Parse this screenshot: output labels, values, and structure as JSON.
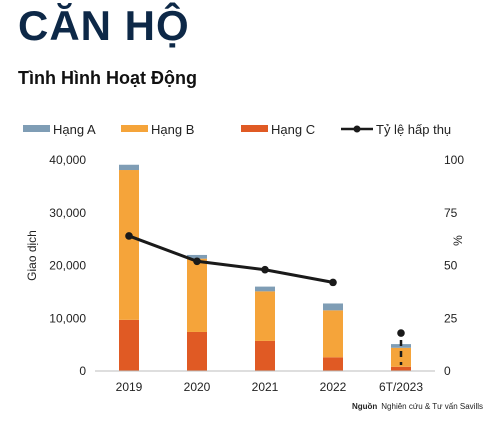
{
  "page": {
    "title": "CĂN HỘ",
    "subtitle": "Tình Hình Hoạt Động",
    "source_label": "Nguồn",
    "source_text": "Nghiên cứu & Tư vấn Savills"
  },
  "chart_data": {
    "type": "bar",
    "stacked": true,
    "categories": [
      "2019",
      "2020",
      "2021",
      "2022",
      "6T/2023"
    ],
    "series": [
      {
        "name": "Hạng C",
        "color": "#e05a24",
        "values": [
          9700,
          7400,
          5700,
          2600,
          800
        ]
      },
      {
        "name": "Hạng B",
        "color": "#f5a43a",
        "values": [
          28400,
          13900,
          9400,
          8900,
          3600
        ]
      },
      {
        "name": "Hạng A",
        "color": "#7f9db5",
        "values": [
          1000,
          700,
          900,
          1300,
          700
        ]
      }
    ],
    "line": {
      "name": "Tỷ lệ hấp thụ",
      "color": "#1a1a1a",
      "values": [
        64,
        52,
        48,
        42,
        18
      ],
      "dashed_last": true
    },
    "legend_order": [
      "Hạng A",
      "Hạng B",
      "Hạng C",
      "Tỷ lệ hấp thụ"
    ],
    "ylabel": "Giao dịch",
    "y2label": "%",
    "ylim": [
      0,
      40000
    ],
    "y2lim": [
      0,
      100
    ],
    "yticks": [
      "0",
      "10,000",
      "20,000",
      "30,000",
      "40,000"
    ],
    "y2ticks": [
      "0",
      "25",
      "50",
      "75",
      "100"
    ],
    "grid": false,
    "legend_position": "top"
  }
}
